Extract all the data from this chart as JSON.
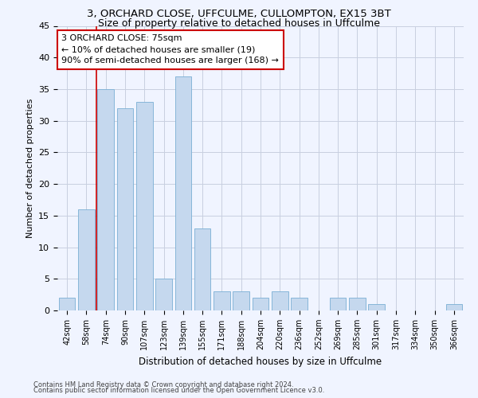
{
  "title1": "3, ORCHARD CLOSE, UFFCULME, CULLOMPTON, EX15 3BT",
  "title2": "Size of property relative to detached houses in Uffculme",
  "xlabel": "Distribution of detached houses by size in Uffculme",
  "ylabel": "Number of detached properties",
  "categories": [
    "42sqm",
    "58sqm",
    "74sqm",
    "90sqm",
    "107sqm",
    "123sqm",
    "139sqm",
    "155sqm",
    "171sqm",
    "188sqm",
    "204sqm",
    "220sqm",
    "236sqm",
    "252sqm",
    "269sqm",
    "285sqm",
    "301sqm",
    "317sqm",
    "334sqm",
    "350sqm",
    "366sqm"
  ],
  "values": [
    2,
    16,
    35,
    32,
    33,
    5,
    37,
    13,
    3,
    3,
    2,
    3,
    2,
    0,
    2,
    2,
    1,
    0,
    0,
    0,
    1
  ],
  "bar_color": "#c5d8ee",
  "bar_edge_color": "#7aafd4",
  "vline_x": 1.5,
  "vline_color": "#cc0000",
  "annotation_line1": "3 ORCHARD CLOSE: 75sqm",
  "annotation_line2": "← 10% of detached houses are smaller (19)",
  "annotation_line3": "90% of semi-detached houses are larger (168) →",
  "annotation_box_color": "#ffffff",
  "annotation_box_edge": "#cc0000",
  "ylim": [
    0,
    45
  ],
  "yticks": [
    0,
    5,
    10,
    15,
    20,
    25,
    30,
    35,
    40,
    45
  ],
  "footer1": "Contains HM Land Registry data © Crown copyright and database right 2024.",
  "footer2": "Contains public sector information licensed under the Open Government Licence v3.0.",
  "bg_color": "#f0f4ff",
  "grid_color": "#c8cfe0",
  "title1_fontsize": 9.5,
  "title2_fontsize": 9,
  "ylabel_fontsize": 8,
  "xlabel_fontsize": 8.5,
  "tick_fontsize": 7,
  "annotation_fontsize": 8,
  "footer_fontsize": 6
}
